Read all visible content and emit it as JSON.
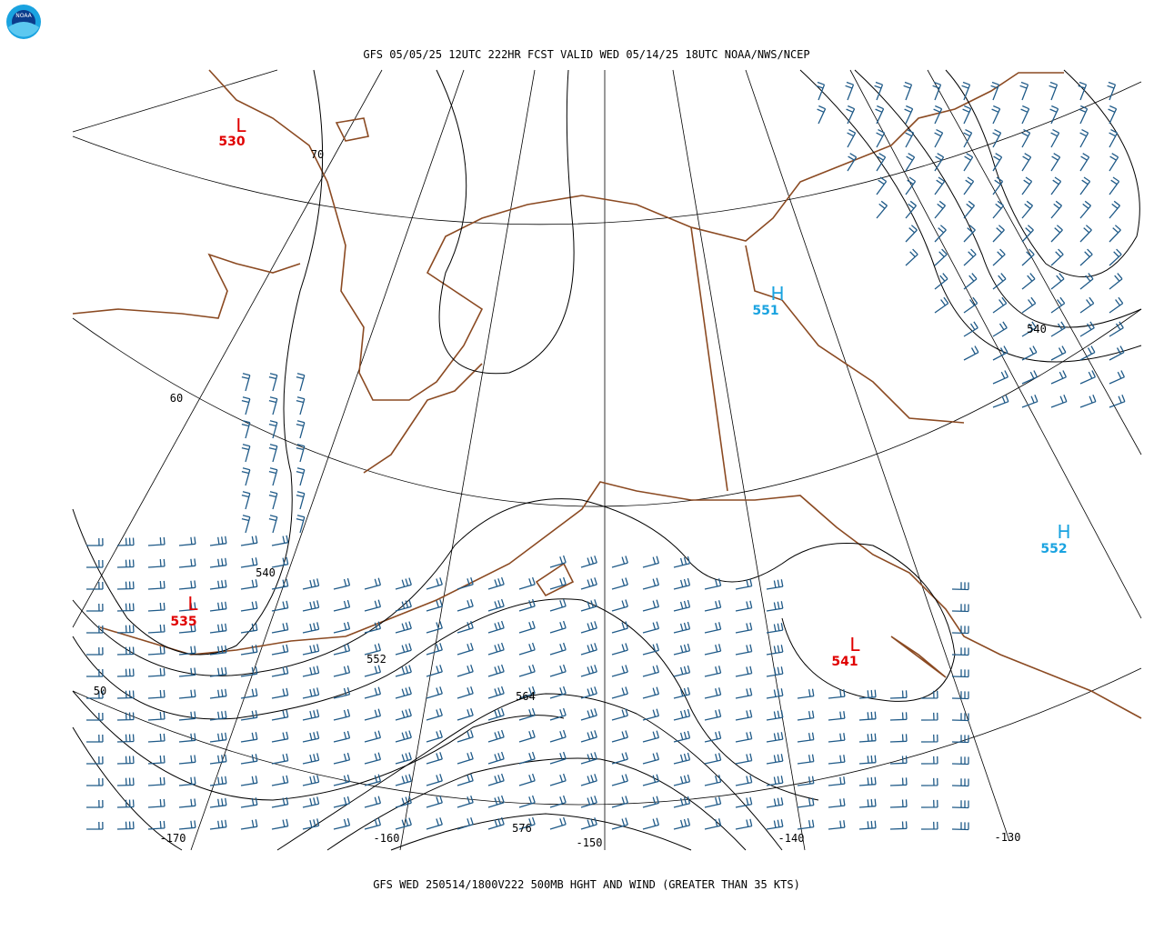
{
  "header": {
    "title": "GFS 05/05/25 12UTC 222HR FCST VALID WED 05/14/25 18UTC NOAA/NWS/NCEP"
  },
  "footer": {
    "caption": "GFS WED 250514/1800V222 500MB HGHT AND WIND (GREATER THAN 35 KTS)"
  },
  "logo": {
    "text": "NOAA"
  },
  "pressure_centers": [
    {
      "symbol": "L",
      "value": "530"
    },
    {
      "symbol": "H",
      "value": "551"
    },
    {
      "symbol": "L",
      "value": "535"
    },
    {
      "symbol": "L",
      "value": "541"
    },
    {
      "symbol": "H",
      "value": "552"
    }
  ],
  "contour_labels": [
    "540",
    "552",
    "564",
    "576",
    "540"
  ],
  "latitude_labels": [
    "70",
    "60",
    "50"
  ],
  "longitude_labels": [
    "-170",
    "-160",
    "-150",
    "-140",
    "-130"
  ]
}
